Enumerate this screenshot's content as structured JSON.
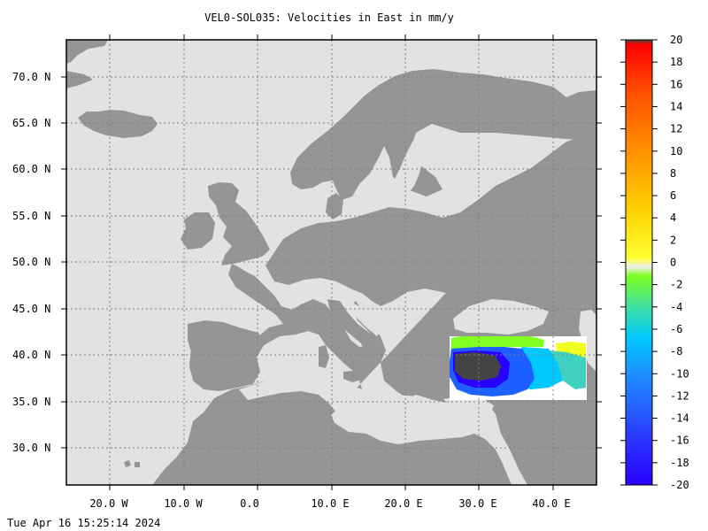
{
  "title": "VEL0-SOL035: Velocities in East in mm/y",
  "timestamp": "Tue Apr 16 15:25:14 2024",
  "map": {
    "lat_labels": [
      "70.0 N",
      "65.0 N",
      "60.0 N",
      "55.0 N",
      "50.0 N",
      "45.0 N",
      "40.0 N",
      "35.0 N",
      "30.0 N"
    ],
    "lon_labels": [
      "20.0 W",
      "10.0 W",
      "0.0",
      "10.0 E",
      "20.0 E",
      "30.0 E",
      "40.0 E"
    ],
    "colors": {
      "ocean": "#e2e2e2",
      "land": "#959595",
      "grid": "#7f7f7f"
    }
  },
  "colorbar": {
    "labels": [
      "20",
      "18",
      "16",
      "14",
      "12",
      "10",
      "8",
      "6",
      "4",
      "2",
      "0",
      "-2",
      "-4",
      "-6",
      "-8",
      "-10",
      "-12",
      "-14",
      "-16",
      "-18",
      "-20"
    ],
    "unit": "mm/y"
  }
}
